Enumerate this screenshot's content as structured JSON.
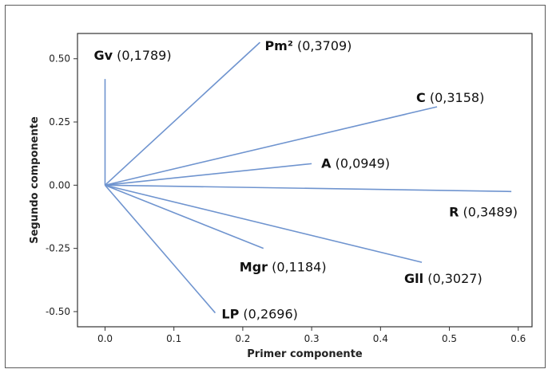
{
  "chart_data": {
    "type": "biplot",
    "xlabel": "Primer componente",
    "ylabel": "Segundo componente",
    "xlim": [
      -0.04,
      0.62
    ],
    "ylim": [
      -0.56,
      0.6
    ],
    "xticks": [
      0.0,
      0.1,
      0.2,
      0.3,
      0.4,
      0.5,
      0.6
    ],
    "xtick_labels": [
      "0.0",
      "0.1",
      "0.2",
      "0.3",
      "0.4",
      "0.5",
      "0.6"
    ],
    "yticks": [
      0.5,
      0.25,
      0.0,
      -0.25,
      -0.5
    ],
    "ytick_labels": [
      "0.50",
      "0.25",
      "0.00",
      "-0.25",
      "-0.50"
    ],
    "line_color": "#6f94cf",
    "grid": false,
    "vectors": [
      {
        "name": "Gv",
        "value": "(0,1789)",
        "x": 0.0,
        "y": 0.42
      },
      {
        "name": "Pm²",
        "value": "(0,3709)",
        "x": 0.225,
        "y": 0.565
      },
      {
        "name": "C",
        "value": "(0,3158)",
        "x": 0.482,
        "y": 0.31
      },
      {
        "name": "A",
        "value": "(0,0949)",
        "x": 0.3,
        "y": 0.085
      },
      {
        "name": "R",
        "value": "(0,3489)",
        "x": 0.59,
        "y": -0.025
      },
      {
        "name": "Mgr",
        "value": "(0,1184)",
        "x": 0.23,
        "y": -0.25
      },
      {
        "name": "Gll",
        "value": "(0,3027)",
        "x": 0.46,
        "y": -0.305
      },
      {
        "name": "LP",
        "value": "(0,2696)",
        "x": 0.16,
        "y": -0.505
      }
    ]
  }
}
